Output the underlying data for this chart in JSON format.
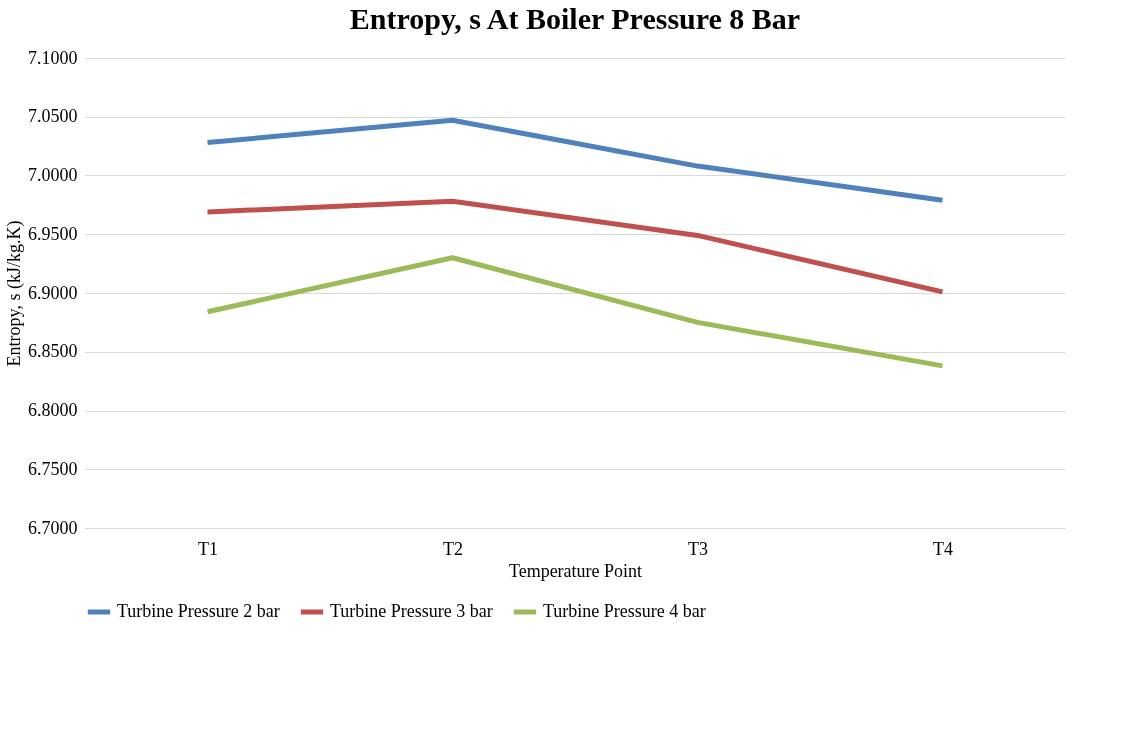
{
  "chart_data": {
    "type": "line",
    "title": "Entropy, s At Boiler Pressure 8 Bar",
    "xlabel": "Temperature Point",
    "ylabel": "Entropy, s (kJ/kg.K)",
    "categories": [
      "T1",
      "T2",
      "T3",
      "T4"
    ],
    "series": [
      {
        "name": "Turbine Pressure 2 bar",
        "color": "#4f81bd",
        "values": [
          7.028,
          7.047,
          7.008,
          6.979
        ]
      },
      {
        "name": "Turbine Pressure 3 bar",
        "color": "#c0504d",
        "values": [
          6.969,
          6.978,
          6.949,
          6.901
        ]
      },
      {
        "name": "Turbine Pressure 4 bar",
        "color": "#9bbb59",
        "values": [
          6.884,
          6.93,
          6.875,
          6.838
        ]
      }
    ],
    "ylim": [
      6.7,
      7.1
    ],
    "yticks": [
      {
        "value": 6.7,
        "label": "6.7000"
      },
      {
        "value": 6.75,
        "label": "6.7500"
      },
      {
        "value": 6.8,
        "label": "6.8000"
      },
      {
        "value": 6.85,
        "label": "6.8500"
      },
      {
        "value": 6.9,
        "label": "6.9000"
      },
      {
        "value": 6.95,
        "label": "6.9500"
      },
      {
        "value": 7.0,
        "label": "7.0000"
      },
      {
        "value": 7.05,
        "label": "7.0500"
      },
      {
        "value": 7.1,
        "label": "7.1000"
      }
    ],
    "grid": "y",
    "legend": "bottom",
    "marker": "none",
    "line_style": "solid"
  }
}
